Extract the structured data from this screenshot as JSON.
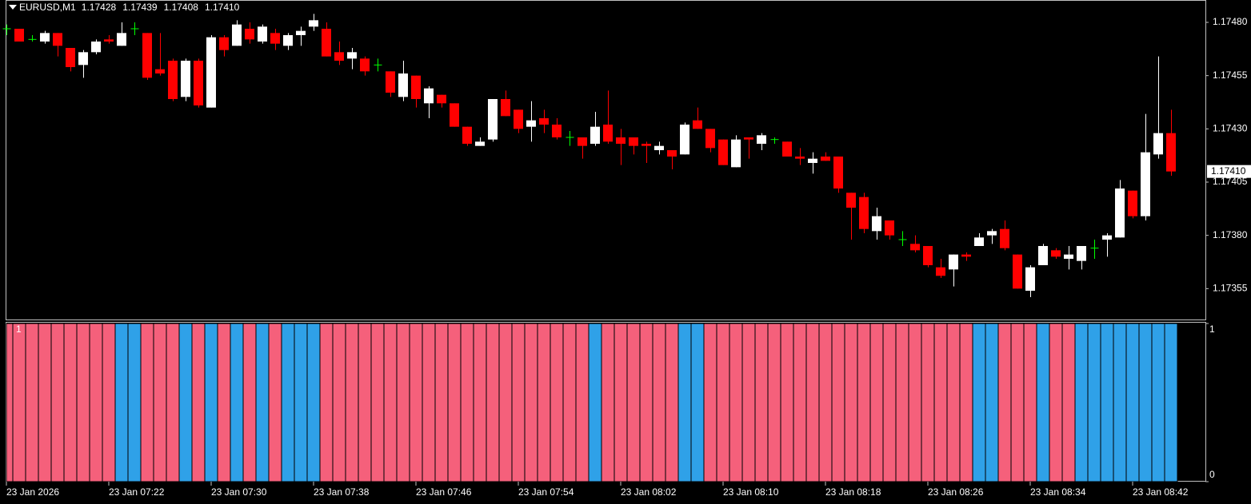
{
  "chart_data": [
    {
      "type": "candlestick",
      "title": "EURUSD,M1",
      "header_values": [
        "1.17428",
        "1.17439",
        "1.17408",
        "1.17410"
      ],
      "categories": [
        "23 Jan 2026",
        null,
        null,
        null,
        null,
        null,
        null,
        null,
        "23 Jan 07:22",
        null,
        null,
        null,
        null,
        null,
        null,
        null,
        "23 Jan 07:30",
        null,
        null,
        null,
        null,
        null,
        null,
        null,
        "23 Jan 07:38",
        null,
        null,
        null,
        null,
        null,
        null,
        null,
        "23 Jan 07:46",
        null,
        null,
        null,
        null,
        null,
        null,
        null,
        "23 Jan 07:54",
        null,
        null,
        null,
        null,
        null,
        null,
        null,
        "23 Jan 08:02",
        null,
        null,
        null,
        null,
        null,
        null,
        null,
        "23 Jan 08:10",
        null,
        null,
        null,
        null,
        null,
        null,
        null,
        "23 Jan 08:18",
        null,
        null,
        null,
        null,
        null,
        null,
        null,
        "23 Jan 08:26",
        null,
        null,
        null,
        null,
        null,
        null,
        null,
        "23 Jan 08:34",
        null,
        null,
        null,
        null,
        null,
        null,
        null,
        "23 Jan 08:42",
        null,
        null,
        null
      ],
      "open": [
        1.17477,
        1.17477,
        1.17472,
        1.17471,
        1.17475,
        1.17468,
        1.1746,
        1.17466,
        1.17472,
        1.17469,
        1.17477,
        1.17475,
        1.17458,
        1.17462,
        1.17445,
        1.17462,
        1.1744,
        1.17473,
        1.17469,
        1.17477,
        1.17471,
        1.17475,
        1.17469,
        1.17474,
        1.17478,
        1.17477,
        1.17466,
        1.17463,
        1.17463,
        1.1746,
        1.17457,
        1.17445,
        1.17455,
        1.17442,
        1.17446,
        1.17442,
        1.17431,
        1.17422,
        1.17425,
        1.17444,
        1.17439,
        1.17431,
        1.17435,
        1.17432,
        1.17426,
        1.17426,
        1.17423,
        1.17432,
        1.17426,
        1.17426,
        1.17423,
        1.1742,
        1.1742,
        1.17418,
        1.17434,
        1.1743,
        1.17425,
        1.17412,
        1.17426,
        1.17423,
        1.17425,
        1.17424,
        1.17417,
        1.17414,
        1.17417,
        1.17417,
        1.174,
        1.17398,
        1.17382,
        1.17387,
        1.17378,
        1.17376,
        1.17375,
        1.17365,
        1.17364,
        1.17371,
        1.17375,
        1.1738,
        1.17383,
        1.17371,
        1.17354,
        1.17366,
        1.17373,
        1.17369,
        1.17368,
        1.17374,
        1.17378,
        1.17379,
        1.17401,
        1.17389,
        1.17418,
        1.17428
      ],
      "high": [
        1.17479,
        1.17477,
        1.17474,
        1.17476,
        1.17475,
        1.17468,
        1.17467,
        1.17472,
        1.17474,
        1.1748,
        1.1748,
        1.17475,
        1.17475,
        1.17463,
        1.17463,
        1.17463,
        1.17474,
        1.17474,
        1.17481,
        1.1748,
        1.17479,
        1.17477,
        1.17475,
        1.17478,
        1.17484,
        1.1748,
        1.17471,
        1.17468,
        1.17464,
        1.17463,
        1.17457,
        1.17462,
        1.17455,
        1.1745,
        1.17446,
        1.17442,
        1.17431,
        1.17426,
        1.17444,
        1.17448,
        1.17439,
        1.17443,
        1.17439,
        1.17435,
        1.17429,
        1.17426,
        1.17438,
        1.17448,
        1.1743,
        1.17426,
        1.17424,
        1.17424,
        1.1742,
        1.17433,
        1.1744,
        1.1743,
        1.17425,
        1.17427,
        1.17426,
        1.17428,
        1.17426,
        1.17424,
        1.17421,
        1.17419,
        1.17419,
        1.17417,
        1.174,
        1.174,
        1.17393,
        1.17387,
        1.17382,
        1.1738,
        1.17375,
        1.17369,
        1.17371,
        1.17372,
        1.17381,
        1.17383,
        1.17387,
        1.17371,
        1.17366,
        1.17376,
        1.17374,
        1.17375,
        1.17375,
        1.17378,
        1.17381,
        1.17406,
        1.17401,
        1.17437,
        1.17464,
        1.17439
      ],
      "low": [
        1.17474,
        1.17471,
        1.17471,
        1.1747,
        1.17464,
        1.17457,
        1.17454,
        1.17465,
        1.1747,
        1.17469,
        1.17474,
        1.17453,
        1.17455,
        1.17443,
        1.17443,
        1.1744,
        1.1744,
        1.17464,
        1.17469,
        1.1747,
        1.1747,
        1.17467,
        1.17467,
        1.17469,
        1.17476,
        1.17464,
        1.1746,
        1.17458,
        1.17455,
        1.17457,
        1.17445,
        1.17443,
        1.1744,
        1.17435,
        1.1744,
        1.17431,
        1.17422,
        1.17422,
        1.17424,
        1.17436,
        1.17428,
        1.17424,
        1.17428,
        1.17425,
        1.17422,
        1.17416,
        1.17422,
        1.17423,
        1.17413,
        1.17418,
        1.17414,
        1.17418,
        1.17411,
        1.17418,
        1.1743,
        1.17419,
        1.17413,
        1.17412,
        1.17416,
        1.1742,
        1.17423,
        1.17417,
        1.17413,
        1.17409,
        1.17415,
        1.174,
        1.17378,
        1.17381,
        1.17378,
        1.17378,
        1.17375,
        1.17372,
        1.17365,
        1.1736,
        1.17356,
        1.17368,
        1.17375,
        1.17376,
        1.17373,
        1.17355,
        1.17351,
        1.17366,
        1.17369,
        1.17364,
        1.17364,
        1.17369,
        1.1737,
        1.17379,
        1.17388,
        1.17387,
        1.17416,
        1.17408
      ],
      "close": [
        1.17477,
        1.17471,
        1.17472,
        1.17475,
        1.17469,
        1.17459,
        1.17466,
        1.17471,
        1.17471,
        1.17475,
        1.17477,
        1.17454,
        1.17456,
        1.17444,
        1.17462,
        1.17441,
        1.17473,
        1.17467,
        1.17479,
        1.17472,
        1.17478,
        1.1747,
        1.17474,
        1.17476,
        1.17481,
        1.17464,
        1.17462,
        1.17466,
        1.17457,
        1.1746,
        1.17447,
        1.17456,
        1.17444,
        1.17449,
        1.17442,
        1.17431,
        1.17423,
        1.17424,
        1.17444,
        1.17436,
        1.1743,
        1.17434,
        1.17432,
        1.17426,
        1.17426,
        1.17422,
        1.17431,
        1.17424,
        1.17423,
        1.17422,
        1.17422,
        1.17422,
        1.17417,
        1.17432,
        1.1743,
        1.17421,
        1.17413,
        1.17425,
        1.17425,
        1.17427,
        1.17425,
        1.17417,
        1.17416,
        1.17416,
        1.17415,
        1.17402,
        1.17393,
        1.17383,
        1.17389,
        1.1738,
        1.17378,
        1.17373,
        1.17366,
        1.17361,
        1.17371,
        1.1737,
        1.17379,
        1.17382,
        1.17374,
        1.17355,
        1.17365,
        1.17375,
        1.1737,
        1.17371,
        1.17375,
        1.17374,
        1.1738,
        1.17402,
        1.17389,
        1.17419,
        1.17428,
        1.1741
      ],
      "up_color": "#ffffff",
      "down_color": "#ff0000",
      "doji_color": "#00ff00",
      "ylim": [
        1.173405,
        1.174905
      ],
      "yticks": [
        {
          "value": 1.1748,
          "label": "1.17480"
        },
        1.17455,
        {
          "value": 1.1743,
          "label": "1.17430"
        },
        1.17405,
        {
          "value": 1.1738,
          "label": "1.17380"
        },
        1.17355
      ],
      "current_price": {
        "value": 1.1741,
        "label": "1.17410"
      }
    },
    {
      "type": "bar",
      "title": "1",
      "values": [
        1,
        1,
        1,
        1,
        1,
        1,
        1,
        1,
        1,
        1,
        1,
        1,
        1,
        1,
        1,
        1,
        1,
        1,
        1,
        1,
        1,
        1,
        1,
        1,
        1,
        1,
        1,
        1,
        1,
        1,
        1,
        1,
        1,
        1,
        1,
        1,
        1,
        1,
        1,
        1,
        1,
        1,
        1,
        1,
        1,
        1,
        1,
        1,
        1,
        1,
        1,
        1,
        1,
        1,
        1,
        1,
        1,
        1,
        1,
        1,
        1,
        1,
        1,
        1,
        1,
        1,
        1,
        1,
        1,
        1,
        1,
        1,
        1,
        1,
        1,
        1,
        1,
        1,
        1,
        1,
        1,
        1,
        1,
        1,
        1,
        1,
        1,
        1,
        1,
        1,
        1,
        1
      ],
      "colors": [
        "#f5607b",
        "#f5607b",
        "#f5607b",
        "#f5607b",
        "#f5607b",
        "#f5607b",
        "#f5607b",
        "#f5607b",
        "#f5607b",
        "#2fa1e8",
        "#2fa1e8",
        "#f5607b",
        "#f5607b",
        "#f5607b",
        "#2fa1e8",
        "#f5607b",
        "#2fa1e8",
        "#f5607b",
        "#2fa1e8",
        "#f5607b",
        "#2fa1e8",
        "#f5607b",
        "#2fa1e8",
        "#2fa1e8",
        "#2fa1e8",
        "#f5607b",
        "#f5607b",
        "#f5607b",
        "#f5607b",
        "#f5607b",
        "#f5607b",
        "#f5607b",
        "#f5607b",
        "#f5607b",
        "#f5607b",
        "#f5607b",
        "#f5607b",
        "#f5607b",
        "#f5607b",
        "#f5607b",
        "#f5607b",
        "#f5607b",
        "#f5607b",
        "#f5607b",
        "#f5607b",
        "#f5607b",
        "#2fa1e8",
        "#f5607b",
        "#f5607b",
        "#f5607b",
        "#f5607b",
        "#f5607b",
        "#f5607b",
        "#2fa1e8",
        "#2fa1e8",
        "#f5607b",
        "#f5607b",
        "#f5607b",
        "#f5607b",
        "#f5607b",
        "#f5607b",
        "#f5607b",
        "#f5607b",
        "#f5607b",
        "#f5607b",
        "#f5607b",
        "#f5607b",
        "#f5607b",
        "#f5607b",
        "#f5607b",
        "#f5607b",
        "#f5607b",
        "#f5607b",
        "#f5607b",
        "#f5607b",
        "#f5607b",
        "#2fa1e8",
        "#2fa1e8",
        "#f5607b",
        "#f5607b",
        "#f5607b",
        "#2fa1e8",
        "#f5607b",
        "#f5607b",
        "#2fa1e8",
        "#2fa1e8",
        "#2fa1e8",
        "#2fa1e8",
        "#2fa1e8",
        "#2fa1e8",
        "#2fa1e8",
        "#2fa1e8"
      ],
      "ylim": [
        0,
        1
      ],
      "yticks": [
        0,
        1
      ]
    }
  ]
}
